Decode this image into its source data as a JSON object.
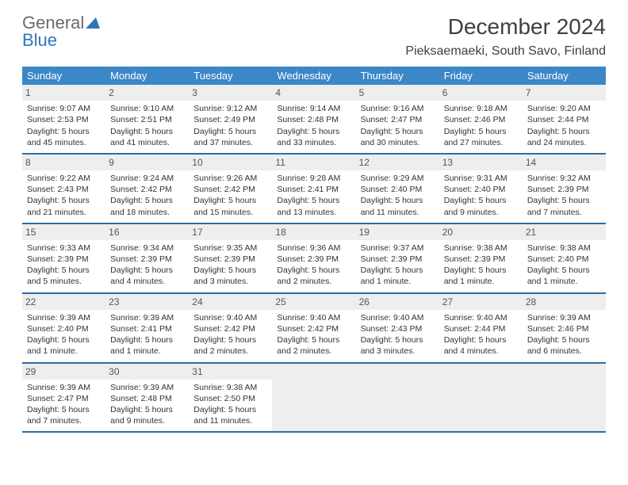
{
  "brand": {
    "name_part1": "General",
    "name_part2": "Blue"
  },
  "title": "December 2024",
  "location": "Pieksaemaeki, South Savo, Finland",
  "dow": [
    "Sunday",
    "Monday",
    "Tuesday",
    "Wednesday",
    "Thursday",
    "Friday",
    "Saturday"
  ],
  "colors": {
    "header_bg": "#3b87c8",
    "header_text": "#ffffff",
    "divider": "#2e6da4",
    "empty_bg": "#eeeeee",
    "daynum_bg": "#eeeeee",
    "text": "#333333"
  },
  "weeks": [
    [
      {
        "day": "1",
        "sunrise": "Sunrise: 9:07 AM",
        "sunset": "Sunset: 2:53 PM",
        "daylight1": "Daylight: 5 hours",
        "daylight2": "and 45 minutes."
      },
      {
        "day": "2",
        "sunrise": "Sunrise: 9:10 AM",
        "sunset": "Sunset: 2:51 PM",
        "daylight1": "Daylight: 5 hours",
        "daylight2": "and 41 minutes."
      },
      {
        "day": "3",
        "sunrise": "Sunrise: 9:12 AM",
        "sunset": "Sunset: 2:49 PM",
        "daylight1": "Daylight: 5 hours",
        "daylight2": "and 37 minutes."
      },
      {
        "day": "4",
        "sunrise": "Sunrise: 9:14 AM",
        "sunset": "Sunset: 2:48 PM",
        "daylight1": "Daylight: 5 hours",
        "daylight2": "and 33 minutes."
      },
      {
        "day": "5",
        "sunrise": "Sunrise: 9:16 AM",
        "sunset": "Sunset: 2:47 PM",
        "daylight1": "Daylight: 5 hours",
        "daylight2": "and 30 minutes."
      },
      {
        "day": "6",
        "sunrise": "Sunrise: 9:18 AM",
        "sunset": "Sunset: 2:46 PM",
        "daylight1": "Daylight: 5 hours",
        "daylight2": "and 27 minutes."
      },
      {
        "day": "7",
        "sunrise": "Sunrise: 9:20 AM",
        "sunset": "Sunset: 2:44 PM",
        "daylight1": "Daylight: 5 hours",
        "daylight2": "and 24 minutes."
      }
    ],
    [
      {
        "day": "8",
        "sunrise": "Sunrise: 9:22 AM",
        "sunset": "Sunset: 2:43 PM",
        "daylight1": "Daylight: 5 hours",
        "daylight2": "and 21 minutes."
      },
      {
        "day": "9",
        "sunrise": "Sunrise: 9:24 AM",
        "sunset": "Sunset: 2:42 PM",
        "daylight1": "Daylight: 5 hours",
        "daylight2": "and 18 minutes."
      },
      {
        "day": "10",
        "sunrise": "Sunrise: 9:26 AM",
        "sunset": "Sunset: 2:42 PM",
        "daylight1": "Daylight: 5 hours",
        "daylight2": "and 15 minutes."
      },
      {
        "day": "11",
        "sunrise": "Sunrise: 9:28 AM",
        "sunset": "Sunset: 2:41 PM",
        "daylight1": "Daylight: 5 hours",
        "daylight2": "and 13 minutes."
      },
      {
        "day": "12",
        "sunrise": "Sunrise: 9:29 AM",
        "sunset": "Sunset: 2:40 PM",
        "daylight1": "Daylight: 5 hours",
        "daylight2": "and 11 minutes."
      },
      {
        "day": "13",
        "sunrise": "Sunrise: 9:31 AM",
        "sunset": "Sunset: 2:40 PM",
        "daylight1": "Daylight: 5 hours",
        "daylight2": "and 9 minutes."
      },
      {
        "day": "14",
        "sunrise": "Sunrise: 9:32 AM",
        "sunset": "Sunset: 2:39 PM",
        "daylight1": "Daylight: 5 hours",
        "daylight2": "and 7 minutes."
      }
    ],
    [
      {
        "day": "15",
        "sunrise": "Sunrise: 9:33 AM",
        "sunset": "Sunset: 2:39 PM",
        "daylight1": "Daylight: 5 hours",
        "daylight2": "and 5 minutes."
      },
      {
        "day": "16",
        "sunrise": "Sunrise: 9:34 AM",
        "sunset": "Sunset: 2:39 PM",
        "daylight1": "Daylight: 5 hours",
        "daylight2": "and 4 minutes."
      },
      {
        "day": "17",
        "sunrise": "Sunrise: 9:35 AM",
        "sunset": "Sunset: 2:39 PM",
        "daylight1": "Daylight: 5 hours",
        "daylight2": "and 3 minutes."
      },
      {
        "day": "18",
        "sunrise": "Sunrise: 9:36 AM",
        "sunset": "Sunset: 2:39 PM",
        "daylight1": "Daylight: 5 hours",
        "daylight2": "and 2 minutes."
      },
      {
        "day": "19",
        "sunrise": "Sunrise: 9:37 AM",
        "sunset": "Sunset: 2:39 PM",
        "daylight1": "Daylight: 5 hours",
        "daylight2": "and 1 minute."
      },
      {
        "day": "20",
        "sunrise": "Sunrise: 9:38 AM",
        "sunset": "Sunset: 2:39 PM",
        "daylight1": "Daylight: 5 hours",
        "daylight2": "and 1 minute."
      },
      {
        "day": "21",
        "sunrise": "Sunrise: 9:38 AM",
        "sunset": "Sunset: 2:40 PM",
        "daylight1": "Daylight: 5 hours",
        "daylight2": "and 1 minute."
      }
    ],
    [
      {
        "day": "22",
        "sunrise": "Sunrise: 9:39 AM",
        "sunset": "Sunset: 2:40 PM",
        "daylight1": "Daylight: 5 hours",
        "daylight2": "and 1 minute."
      },
      {
        "day": "23",
        "sunrise": "Sunrise: 9:39 AM",
        "sunset": "Sunset: 2:41 PM",
        "daylight1": "Daylight: 5 hours",
        "daylight2": "and 1 minute."
      },
      {
        "day": "24",
        "sunrise": "Sunrise: 9:40 AM",
        "sunset": "Sunset: 2:42 PM",
        "daylight1": "Daylight: 5 hours",
        "daylight2": "and 2 minutes."
      },
      {
        "day": "25",
        "sunrise": "Sunrise: 9:40 AM",
        "sunset": "Sunset: 2:42 PM",
        "daylight1": "Daylight: 5 hours",
        "daylight2": "and 2 minutes."
      },
      {
        "day": "26",
        "sunrise": "Sunrise: 9:40 AM",
        "sunset": "Sunset: 2:43 PM",
        "daylight1": "Daylight: 5 hours",
        "daylight2": "and 3 minutes."
      },
      {
        "day": "27",
        "sunrise": "Sunrise: 9:40 AM",
        "sunset": "Sunset: 2:44 PM",
        "daylight1": "Daylight: 5 hours",
        "daylight2": "and 4 minutes."
      },
      {
        "day": "28",
        "sunrise": "Sunrise: 9:39 AM",
        "sunset": "Sunset: 2:46 PM",
        "daylight1": "Daylight: 5 hours",
        "daylight2": "and 6 minutes."
      }
    ],
    [
      {
        "day": "29",
        "sunrise": "Sunrise: 9:39 AM",
        "sunset": "Sunset: 2:47 PM",
        "daylight1": "Daylight: 5 hours",
        "daylight2": "and 7 minutes."
      },
      {
        "day": "30",
        "sunrise": "Sunrise: 9:39 AM",
        "sunset": "Sunset: 2:48 PM",
        "daylight1": "Daylight: 5 hours",
        "daylight2": "and 9 minutes."
      },
      {
        "day": "31",
        "sunrise": "Sunrise: 9:38 AM",
        "sunset": "Sunset: 2:50 PM",
        "daylight1": "Daylight: 5 hours",
        "daylight2": "and 11 minutes."
      },
      null,
      null,
      null,
      null
    ]
  ]
}
